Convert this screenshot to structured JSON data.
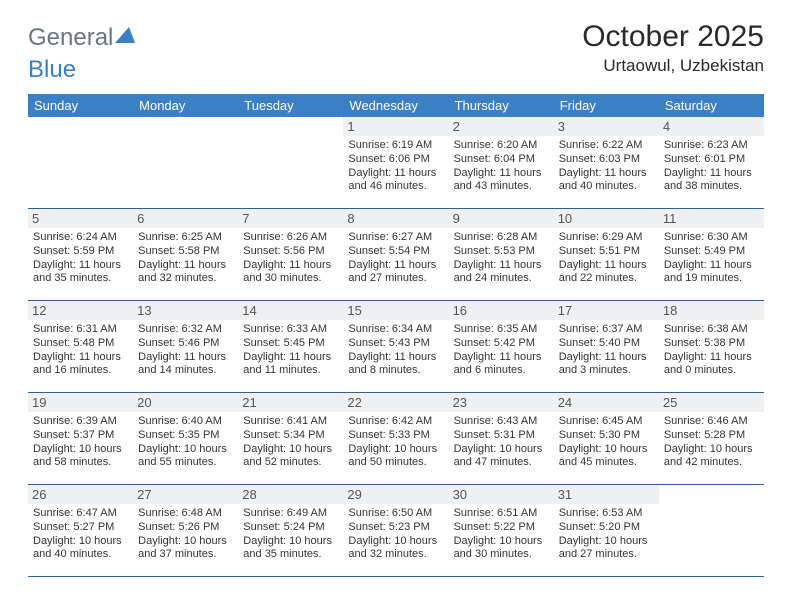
{
  "logo": {
    "text1": "General",
    "text2": "Blue"
  },
  "title": "October 2025",
  "location": "Urtaowul, Uzbekistan",
  "colors": {
    "header_bg": "#3b7fc4",
    "header_text": "#ffffff",
    "row_border": "#2f5f93",
    "daynum_bg": "#eef0f2",
    "logo_gray": "#6b7680",
    "logo_blue": "#3b7fc4"
  },
  "calendar": {
    "type": "table",
    "columns": [
      "Sunday",
      "Monday",
      "Tuesday",
      "Wednesday",
      "Thursday",
      "Friday",
      "Saturday"
    ],
    "weeks": [
      [
        {
          "day": "",
          "sunrise": "",
          "sunset": "",
          "daylight": ""
        },
        {
          "day": "",
          "sunrise": "",
          "sunset": "",
          "daylight": ""
        },
        {
          "day": "",
          "sunrise": "",
          "sunset": "",
          "daylight": ""
        },
        {
          "day": "1",
          "sunrise": "Sunrise: 6:19 AM",
          "sunset": "Sunset: 6:06 PM",
          "daylight": "Daylight: 11 hours and 46 minutes."
        },
        {
          "day": "2",
          "sunrise": "Sunrise: 6:20 AM",
          "sunset": "Sunset: 6:04 PM",
          "daylight": "Daylight: 11 hours and 43 minutes."
        },
        {
          "day": "3",
          "sunrise": "Sunrise: 6:22 AM",
          "sunset": "Sunset: 6:03 PM",
          "daylight": "Daylight: 11 hours and 40 minutes."
        },
        {
          "day": "4",
          "sunrise": "Sunrise: 6:23 AM",
          "sunset": "Sunset: 6:01 PM",
          "daylight": "Daylight: 11 hours and 38 minutes."
        }
      ],
      [
        {
          "day": "5",
          "sunrise": "Sunrise: 6:24 AM",
          "sunset": "Sunset: 5:59 PM",
          "daylight": "Daylight: 11 hours and 35 minutes."
        },
        {
          "day": "6",
          "sunrise": "Sunrise: 6:25 AM",
          "sunset": "Sunset: 5:58 PM",
          "daylight": "Daylight: 11 hours and 32 minutes."
        },
        {
          "day": "7",
          "sunrise": "Sunrise: 6:26 AM",
          "sunset": "Sunset: 5:56 PM",
          "daylight": "Daylight: 11 hours and 30 minutes."
        },
        {
          "day": "8",
          "sunrise": "Sunrise: 6:27 AM",
          "sunset": "Sunset: 5:54 PM",
          "daylight": "Daylight: 11 hours and 27 minutes."
        },
        {
          "day": "9",
          "sunrise": "Sunrise: 6:28 AM",
          "sunset": "Sunset: 5:53 PM",
          "daylight": "Daylight: 11 hours and 24 minutes."
        },
        {
          "day": "10",
          "sunrise": "Sunrise: 6:29 AM",
          "sunset": "Sunset: 5:51 PM",
          "daylight": "Daylight: 11 hours and 22 minutes."
        },
        {
          "day": "11",
          "sunrise": "Sunrise: 6:30 AM",
          "sunset": "Sunset: 5:49 PM",
          "daylight": "Daylight: 11 hours and 19 minutes."
        }
      ],
      [
        {
          "day": "12",
          "sunrise": "Sunrise: 6:31 AM",
          "sunset": "Sunset: 5:48 PM",
          "daylight": "Daylight: 11 hours and 16 minutes."
        },
        {
          "day": "13",
          "sunrise": "Sunrise: 6:32 AM",
          "sunset": "Sunset: 5:46 PM",
          "daylight": "Daylight: 11 hours and 14 minutes."
        },
        {
          "day": "14",
          "sunrise": "Sunrise: 6:33 AM",
          "sunset": "Sunset: 5:45 PM",
          "daylight": "Daylight: 11 hours and 11 minutes."
        },
        {
          "day": "15",
          "sunrise": "Sunrise: 6:34 AM",
          "sunset": "Sunset: 5:43 PM",
          "daylight": "Daylight: 11 hours and 8 minutes."
        },
        {
          "day": "16",
          "sunrise": "Sunrise: 6:35 AM",
          "sunset": "Sunset: 5:42 PM",
          "daylight": "Daylight: 11 hours and 6 minutes."
        },
        {
          "day": "17",
          "sunrise": "Sunrise: 6:37 AM",
          "sunset": "Sunset: 5:40 PM",
          "daylight": "Daylight: 11 hours and 3 minutes."
        },
        {
          "day": "18",
          "sunrise": "Sunrise: 6:38 AM",
          "sunset": "Sunset: 5:38 PM",
          "daylight": "Daylight: 11 hours and 0 minutes."
        }
      ],
      [
        {
          "day": "19",
          "sunrise": "Sunrise: 6:39 AM",
          "sunset": "Sunset: 5:37 PM",
          "daylight": "Daylight: 10 hours and 58 minutes."
        },
        {
          "day": "20",
          "sunrise": "Sunrise: 6:40 AM",
          "sunset": "Sunset: 5:35 PM",
          "daylight": "Daylight: 10 hours and 55 minutes."
        },
        {
          "day": "21",
          "sunrise": "Sunrise: 6:41 AM",
          "sunset": "Sunset: 5:34 PM",
          "daylight": "Daylight: 10 hours and 52 minutes."
        },
        {
          "day": "22",
          "sunrise": "Sunrise: 6:42 AM",
          "sunset": "Sunset: 5:33 PM",
          "daylight": "Daylight: 10 hours and 50 minutes."
        },
        {
          "day": "23",
          "sunrise": "Sunrise: 6:43 AM",
          "sunset": "Sunset: 5:31 PM",
          "daylight": "Daylight: 10 hours and 47 minutes."
        },
        {
          "day": "24",
          "sunrise": "Sunrise: 6:45 AM",
          "sunset": "Sunset: 5:30 PM",
          "daylight": "Daylight: 10 hours and 45 minutes."
        },
        {
          "day": "25",
          "sunrise": "Sunrise: 6:46 AM",
          "sunset": "Sunset: 5:28 PM",
          "daylight": "Daylight: 10 hours and 42 minutes."
        }
      ],
      [
        {
          "day": "26",
          "sunrise": "Sunrise: 6:47 AM",
          "sunset": "Sunset: 5:27 PM",
          "daylight": "Daylight: 10 hours and 40 minutes."
        },
        {
          "day": "27",
          "sunrise": "Sunrise: 6:48 AM",
          "sunset": "Sunset: 5:26 PM",
          "daylight": "Daylight: 10 hours and 37 minutes."
        },
        {
          "day": "28",
          "sunrise": "Sunrise: 6:49 AM",
          "sunset": "Sunset: 5:24 PM",
          "daylight": "Daylight: 10 hours and 35 minutes."
        },
        {
          "day": "29",
          "sunrise": "Sunrise: 6:50 AM",
          "sunset": "Sunset: 5:23 PM",
          "daylight": "Daylight: 10 hours and 32 minutes."
        },
        {
          "day": "30",
          "sunrise": "Sunrise: 6:51 AM",
          "sunset": "Sunset: 5:22 PM",
          "daylight": "Daylight: 10 hours and 30 minutes."
        },
        {
          "day": "31",
          "sunrise": "Sunrise: 6:53 AM",
          "sunset": "Sunset: 5:20 PM",
          "daylight": "Daylight: 10 hours and 27 minutes."
        },
        {
          "day": "",
          "sunrise": "",
          "sunset": "",
          "daylight": ""
        }
      ]
    ]
  }
}
